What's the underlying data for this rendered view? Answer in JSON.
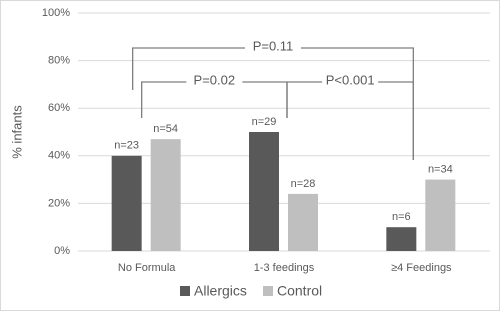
{
  "chart_data": {
    "type": "bar",
    "y_label": "% infants",
    "categories": [
      "No Formula",
      "1-3 feedings",
      "≥4 Feedings"
    ],
    "series": [
      {
        "name": "Allergics",
        "color": "#595959",
        "values": [
          40,
          50,
          10
        ],
        "n_labels": [
          "n=23",
          "n=29",
          "n=6"
        ]
      },
      {
        "name": "Control",
        "color": "#bfbfbf",
        "values": [
          47,
          24,
          30
        ],
        "n_labels": [
          "n=54",
          "n=28",
          "n=34"
        ]
      }
    ],
    "comparisons": [
      "P=0.02",
      "P<0.001",
      "P=0.11"
    ],
    "ylim": [
      0,
      100
    ],
    "yticks": [
      {
        "value": 0,
        "label": "0%"
      },
      {
        "value": 20,
        "label": "20%"
      },
      {
        "value": 40,
        "label": "40%"
      },
      {
        "value": 60,
        "label": "60%"
      },
      {
        "value": 80,
        "label": "80%"
      },
      {
        "value": 100,
        "label": "100%"
      }
    ],
    "grid": true,
    "legend": "bottom"
  }
}
